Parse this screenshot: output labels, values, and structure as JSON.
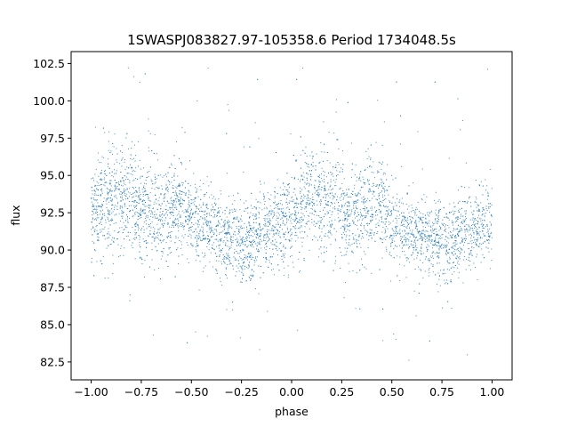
{
  "chart_data": {
    "type": "scatter",
    "title": "1SWASPJ083827.97-105358.6 Period 1734048.5s",
    "xlabel": "phase",
    "ylabel": "flux",
    "xlim": [
      -1.1,
      1.1
    ],
    "ylim": [
      81.3,
      103.3
    ],
    "xticks": [
      -1.0,
      -0.75,
      -0.5,
      -0.25,
      0.0,
      0.25,
      0.5,
      0.75,
      1.0
    ],
    "xtick_labels": [
      "−1.00",
      "−0.75",
      "−0.50",
      "−0.25",
      "0.00",
      "0.25",
      "0.50",
      "0.75",
      "1.00"
    ],
    "yticks": [
      82.5,
      85.0,
      87.5,
      90.0,
      92.5,
      95.0,
      97.5,
      100.0,
      102.5
    ],
    "ytick_labels": [
      "82.5",
      "85.0",
      "87.5",
      "90.0",
      "92.5",
      "95.0",
      "97.5",
      "100.0",
      "102.5"
    ],
    "grid": false,
    "legend": "none",
    "marker_color": "#1f77b4",
    "series": [
      {
        "phase_x": [
          -1.0,
          -0.95,
          -0.9,
          -0.85,
          -0.8,
          -0.75,
          -0.7,
          -0.65,
          -0.6,
          -0.55,
          -0.5,
          -0.45,
          -0.4,
          -0.35,
          -0.3,
          -0.25,
          -0.2,
          -0.15,
          -0.1,
          -0.05,
          0.0,
          0.05,
          0.1,
          0.15,
          0.2,
          0.25,
          0.3,
          0.35,
          0.4,
          0.45,
          0.5,
          0.55,
          0.6,
          0.65,
          0.7,
          0.75,
          0.8,
          0.85,
          0.9,
          0.95,
          1.0
        ],
        "mean_flux": [
          92.3,
          93.0,
          93.2,
          93.4,
          93.3,
          93.0,
          92.6,
          92.5,
          92.7,
          93.2,
          91.9,
          91.5,
          91.3,
          91.0,
          90.8,
          90.4,
          90.6,
          91.2,
          91.5,
          91.8,
          92.2,
          93.0,
          93.3,
          93.2,
          93.0,
          92.8,
          92.5,
          92.6,
          92.9,
          93.0,
          91.8,
          91.4,
          91.2,
          91.0,
          90.8,
          90.5,
          90.6,
          91.0,
          91.4,
          91.7,
          92.1
        ],
        "spread": [
          1.6,
          1.7,
          1.8,
          1.8,
          1.8,
          1.8,
          1.7,
          1.7,
          1.7,
          1.6,
          1.4,
          1.3,
          1.3,
          1.3,
          1.3,
          1.3,
          1.3,
          1.3,
          1.3,
          1.4,
          1.6,
          1.7,
          1.8,
          1.8,
          1.8,
          1.8,
          1.7,
          1.7,
          1.7,
          1.6,
          1.4,
          1.3,
          1.3,
          1.3,
          1.3,
          1.3,
          1.3,
          1.3,
          1.3,
          1.4,
          1.6
        ]
      }
    ]
  }
}
